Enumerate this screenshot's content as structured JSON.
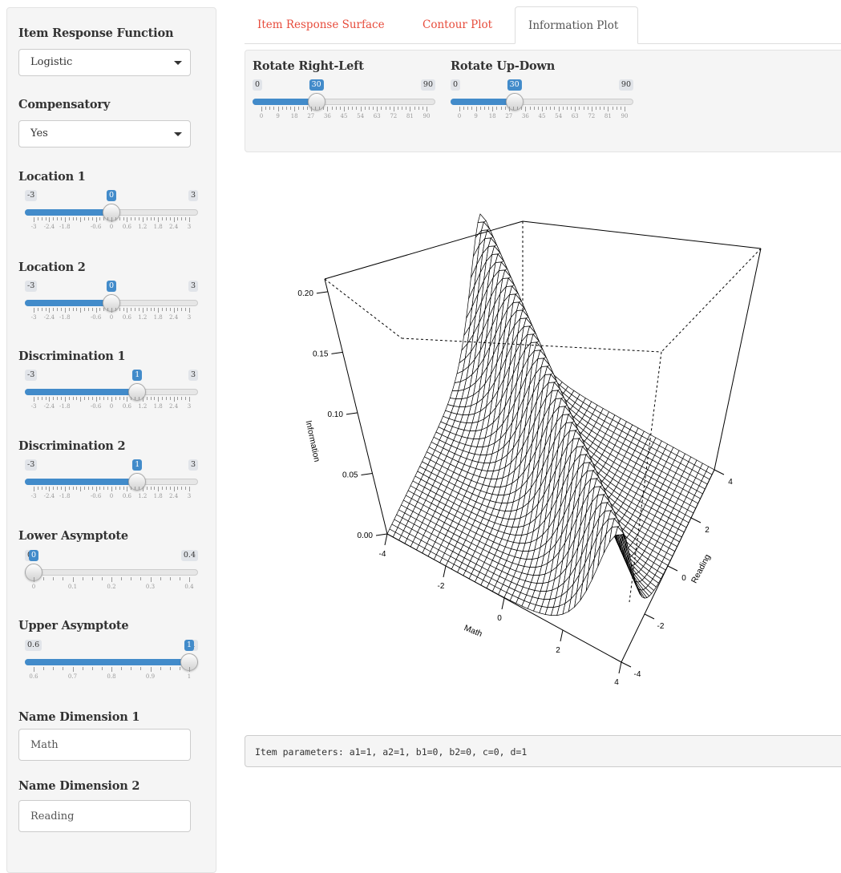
{
  "sidebar": {
    "irf": {
      "label": "Item Response Function",
      "value": "Logistic"
    },
    "compensatory": {
      "label": "Compensatory",
      "value": "Yes"
    },
    "sliders": [
      {
        "label": "Location 1",
        "min": "-3",
        "max": "3",
        "value": "0",
        "fraction": 0.5,
        "grid": [
          "-3",
          "-2.4",
          "-1.8",
          "",
          "-0.6",
          "0",
          "0.6",
          "1.2",
          "1.8",
          "2.4",
          "3"
        ]
      },
      {
        "label": "Location 2",
        "min": "-3",
        "max": "3",
        "value": "0",
        "fraction": 0.5,
        "grid": [
          "-3",
          "-2.4",
          "-1.8",
          "",
          "-0.6",
          "0",
          "0.6",
          "1.2",
          "1.8",
          "2.4",
          "3"
        ]
      },
      {
        "label": "Discrimination 1",
        "min": "-3",
        "max": "3",
        "value": "1",
        "fraction": 0.6667,
        "grid": [
          "-3",
          "-2.4",
          "-1.8",
          "",
          "-0.6",
          "0",
          "0.6",
          "1.2",
          "1.8",
          "2.4",
          "3"
        ]
      },
      {
        "label": "Discrimination 2",
        "min": "-3",
        "max": "3",
        "value": "1",
        "fraction": 0.6667,
        "grid": [
          "-3",
          "-2.4",
          "-1.8",
          "",
          "-0.6",
          "0",
          "0.6",
          "1.2",
          "1.8",
          "2.4",
          "3"
        ]
      },
      {
        "label": "Lower Asymptote",
        "min": "0",
        "max": "0.4",
        "value": "0",
        "fraction": 0,
        "grid": [
          "0",
          "0.1",
          "0.2",
          "0.3",
          "0.4"
        ]
      },
      {
        "label": "Upper Asymptote",
        "min": "0.6",
        "max": "1",
        "value": "1",
        "fraction": 1,
        "grid": [
          "0.6",
          "0.7",
          "0.8",
          "0.9",
          "1"
        ]
      }
    ],
    "name_dim1": {
      "label": "Name Dimension 1",
      "value": "Math"
    },
    "name_dim2": {
      "label": "Name Dimension 2",
      "value": "Reading"
    }
  },
  "tabs": [
    {
      "label": "Item Response Surface",
      "active": false
    },
    {
      "label": "Contour Plot",
      "active": false
    },
    {
      "label": "Information Plot",
      "active": true
    }
  ],
  "rotate": [
    {
      "label": "Rotate Right-Left",
      "min": "0",
      "max": "90",
      "value": "30",
      "fraction": 0.3333,
      "grid": [
        "0",
        "9",
        "18",
        "27",
        "36",
        "45",
        "54",
        "63",
        "72",
        "81",
        "90"
      ]
    },
    {
      "label": "Rotate Up-Down",
      "min": "0",
      "max": "90",
      "value": "30",
      "fraction": 0.3333,
      "grid": [
        "0",
        "9",
        "18",
        "27",
        "36",
        "45",
        "54",
        "63",
        "72",
        "81",
        "90"
      ]
    }
  ],
  "plot": {
    "zlabel": "Information",
    "xlabel": "Math",
    "ylabel": "Reading",
    "z_ticks": [
      "0.00",
      "0.05",
      "0.10",
      "0.15",
      "0.20"
    ],
    "x_ticks": [
      "-4",
      "-2",
      "0",
      "2",
      "4"
    ],
    "y_ticks": [
      "-4",
      "-2",
      "0",
      "2",
      "4"
    ]
  },
  "params_text": "Item parameters: a1=1, a2=1, b1=0, b2=0, c=0, d=1"
}
